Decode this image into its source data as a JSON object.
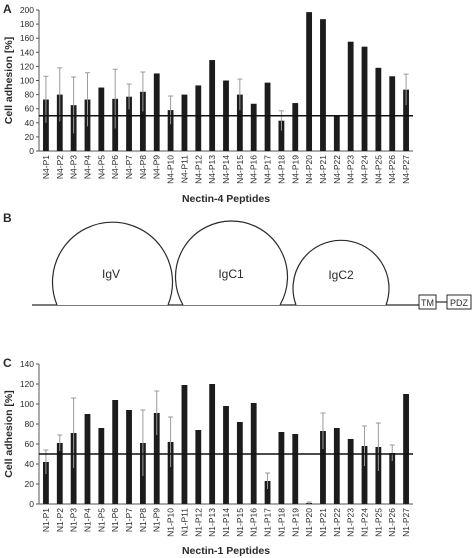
{
  "panels": {
    "a_letter": "A",
    "b_letter": "B",
    "c_letter": "C"
  },
  "chart_data": [
    {
      "type": "bar",
      "panel": "A",
      "xlabel": "Nectin-4 Peptides",
      "ylabel": "Cell adhesion [%]",
      "ylim": [
        0,
        200
      ],
      "yticks": [
        0,
        20,
        40,
        60,
        80,
        100,
        120,
        140,
        160,
        180,
        200
      ],
      "reference_line": 50,
      "grid": false,
      "bar_color": "#1c1c1c",
      "categories": [
        "N4-P1",
        "N4-P2",
        "N4-P3",
        "N4-P4",
        "N4-P5",
        "N4-P6",
        "N4-P7",
        "N4-P8",
        "N4-P9",
        "N4-P10",
        "N4-P11",
        "N4-P12",
        "N4-P13",
        "N4-P14",
        "N4-P15",
        "N4-P16",
        "N4-P17",
        "N4-P18",
        "N4-P19",
        "N4-P20",
        "N4-P21",
        "N4-P22",
        "N4-P23",
        "N4-P24",
        "N4-P25",
        "N4-P26",
        "N4-P27"
      ],
      "values": [
        73,
        80,
        65,
        73,
        90,
        74,
        77,
        84,
        110,
        58,
        80,
        93,
        129,
        100,
        80,
        67,
        97,
        43,
        68,
        197,
        187,
        51,
        155,
        148,
        118,
        106,
        87
      ],
      "errors": [
        33,
        38,
        40,
        38,
        0,
        42,
        18,
        28,
        0,
        20,
        0,
        0,
        0,
        0,
        22,
        0,
        0,
        14,
        0,
        0,
        0,
        0,
        0,
        0,
        0,
        0,
        22
      ]
    },
    {
      "type": "diagram",
      "panel": "B",
      "domains": [
        "IgV",
        "IgC1",
        "IgC2"
      ],
      "boxes": [
        "TM",
        "PDZ"
      ]
    },
    {
      "type": "bar",
      "panel": "C",
      "xlabel": "Nectin-1 Peptides",
      "ylabel": "Cell adhesion [%]",
      "ylim": [
        0,
        140
      ],
      "yticks": [
        0,
        20,
        40,
        60,
        80,
        100,
        120,
        140
      ],
      "reference_line": 50,
      "grid": false,
      "bar_color": "#1c1c1c",
      "categories": [
        "N1-P1",
        "N1-P2",
        "N1-P3",
        "N1-P4",
        "N1-P5",
        "N1-P6",
        "N1-P7",
        "N1-P8",
        "N1-P9",
        "N1-P10",
        "N1-P11",
        "N1-P12",
        "N1-P13",
        "N1-P14",
        "N1-P15",
        "N1-P16",
        "N1-P17",
        "N1-P18",
        "N1-P19",
        "N1-P20",
        "N1-P21",
        "N1-P22",
        "N1-P23",
        "N1-P24",
        "N1-P25",
        "N1-P26",
        "N1-P27"
      ],
      "values": [
        42,
        61,
        71,
        90,
        76,
        104,
        94,
        61,
        91,
        62,
        119,
        74,
        120,
        98,
        82,
        101,
        23,
        72,
        70,
        1,
        73,
        76,
        65,
        58,
        57,
        51,
        110
      ],
      "errors": [
        12,
        8,
        35,
        0,
        0,
        0,
        0,
        33,
        22,
        25,
        0,
        0,
        0,
        0,
        0,
        0,
        8,
        0,
        0,
        1,
        18,
        0,
        0,
        20,
        24,
        8,
        0
      ]
    }
  ]
}
